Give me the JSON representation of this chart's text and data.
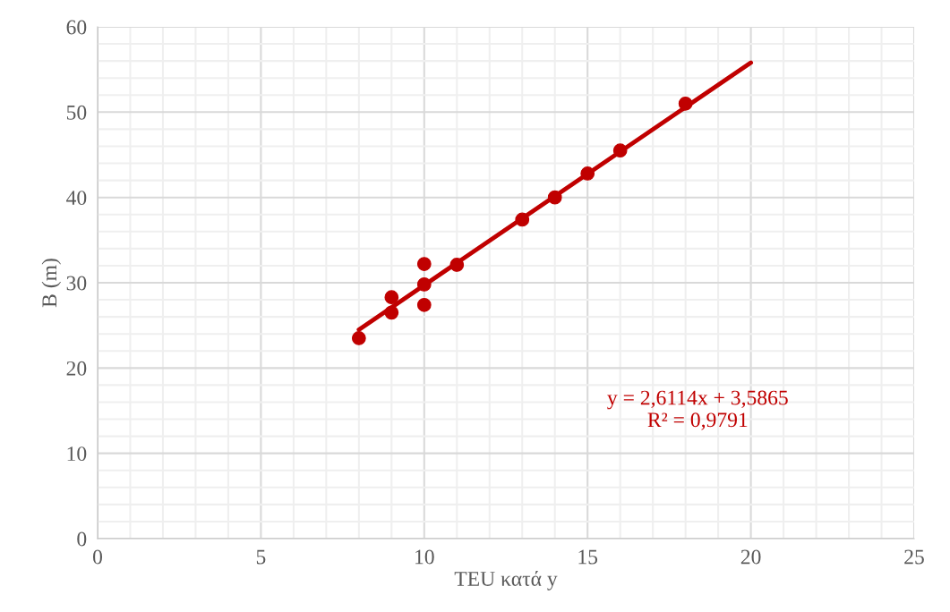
{
  "chart_data": {
    "type": "scatter",
    "xlabel": "TEU κατά y",
    "ylabel": "B (m)",
    "series": [
      {
        "color": "#c00000",
        "marker": "circle",
        "x": [
          8,
          9,
          9,
          10,
          10,
          10,
          11,
          13,
          14,
          15,
          16,
          18
        ],
        "values": [
          23.5,
          28.3,
          26.5,
          32.2,
          29.8,
          27.4,
          32.1,
          37.4,
          40.0,
          42.8,
          45.5,
          51.0
        ]
      },
      {
        "type": "line",
        "color": "#c00000",
        "marker": "none",
        "line_style": "solid",
        "x": [
          8,
          20
        ],
        "values": [
          24.5,
          55.8
        ]
      }
    ],
    "annotations": [
      "y = 2,6114x + 3,5865\nR² = 0,9791"
    ],
    "xlim": [
      0,
      25
    ],
    "xticks": [
      0,
      5,
      10,
      15,
      20,
      25
    ],
    "ylim": [
      0,
      60
    ],
    "yticks": [
      0,
      10,
      20,
      30,
      40,
      50,
      60
    ],
    "grid": true,
    "legend": false
  }
}
